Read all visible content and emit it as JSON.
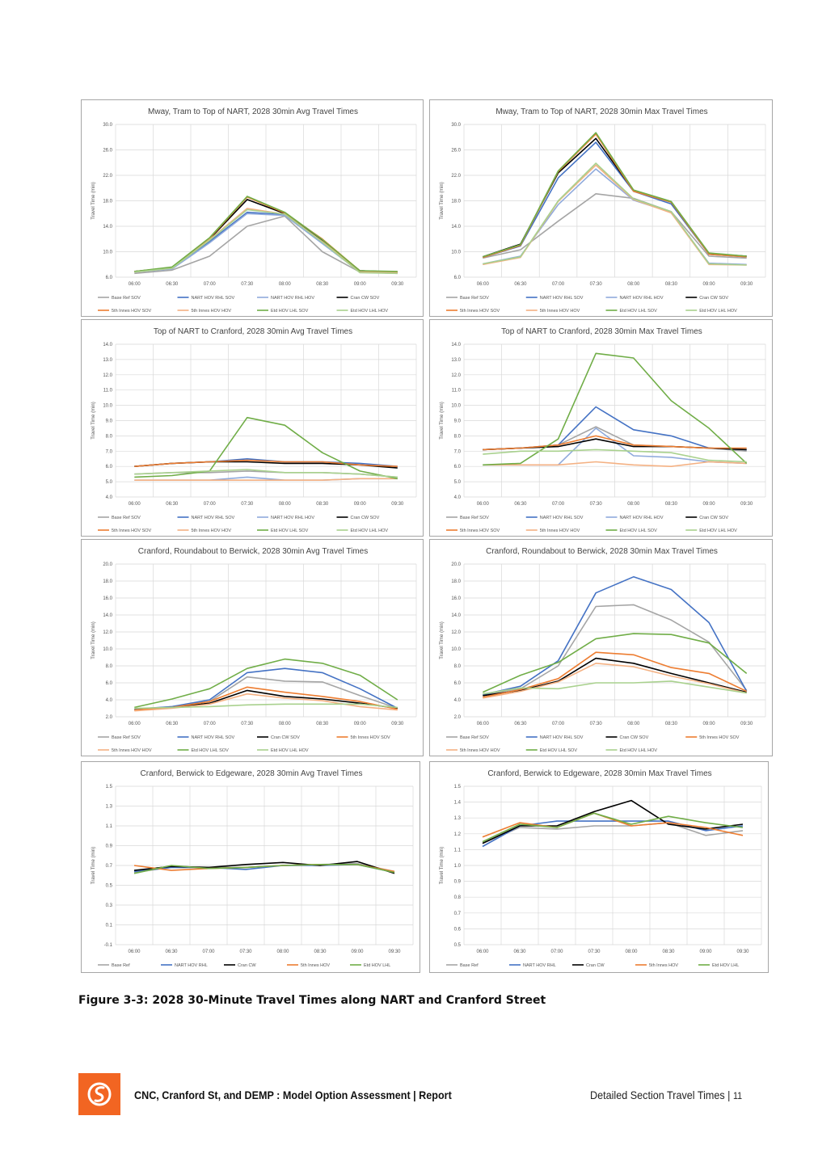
{
  "caption": "Figure 3-3:  2028 30-Minute Travel Times along NART and Cranford Street",
  "footer": {
    "title": "CNC, Cranford St, and DEMP : Model Option Assessment | Report",
    "right": "Detailed Section Travel Times",
    "page": "11",
    "logo_icon": "logo-icon",
    "logo_color": "#f26522"
  },
  "series_colors": {
    "Base Ref SOV": "#a5a5a5",
    "NART HOV RHL SOV": "#4472c4",
    "NART HOV RHL HOV": "#8faadc",
    "Cran CW SOV": "#000000",
    "5th Innes HOV SOV": "#ed7d31",
    "5th Innes HOV HOV": "#f4b183",
    "Etd HOV LHL SOV": "#70ad47",
    "Etd HOV LHL HOV": "#a9d18e",
    "Base Ref": "#a5a5a5",
    "NART HOV RHL": "#4472c4",
    "Cran CW": "#000000",
    "5th Innes HOV": "#ed7d31",
    "Etd HOV LHL": "#70ad47"
  },
  "chart_data": [
    {
      "type": "line",
      "title": "Mway, Tram to Top of NART, 2028 30min Avg Travel Times",
      "ylabel": "Travel Time (min)",
      "x": [
        "06:00",
        "06:30",
        "07:00",
        "07:30",
        "08:00",
        "08:30",
        "09:00",
        "09:30"
      ],
      "ylim": [
        6,
        30
      ],
      "yticks": [
        "6.0",
        "10.0",
        "14.0",
        "18.0",
        "22.0",
        "26.0",
        "30.0"
      ],
      "legend_cols": 4,
      "series": [
        {
          "name": "Base Ref SOV",
          "values": [
            6.6,
            7.1,
            9.3,
            14.0,
            15.6,
            10.0,
            6.8,
            6.6
          ]
        },
        {
          "name": "NART HOV RHL SOV",
          "values": [
            6.9,
            7.4,
            11.6,
            16.2,
            15.8,
            11.5,
            7.0,
            6.8
          ]
        },
        {
          "name": "NART HOV RHL HOV",
          "values": [
            6.8,
            7.3,
            11.4,
            16.0,
            15.7,
            11.3,
            6.8,
            6.7
          ]
        },
        {
          "name": "Cran CW SOV",
          "values": [
            6.9,
            7.5,
            12.0,
            18.2,
            16.0,
            11.8,
            7.0,
            6.8
          ]
        },
        {
          "name": "5th Innes HOV SOV",
          "values": [
            6.9,
            7.5,
            12.1,
            18.6,
            16.1,
            12.0,
            7.0,
            6.8
          ]
        },
        {
          "name": "5th Innes HOV HOV",
          "values": [
            6.8,
            7.4,
            11.9,
            16.8,
            15.9,
            11.6,
            6.9,
            6.7
          ]
        },
        {
          "name": "Etd HOV LHL SOV",
          "values": [
            6.9,
            7.6,
            12.2,
            18.7,
            16.2,
            11.9,
            7.0,
            6.9
          ]
        },
        {
          "name": "Etd HOV LHL HOV",
          "values": [
            6.8,
            7.4,
            11.8,
            16.6,
            15.9,
            11.5,
            6.7,
            6.6
          ]
        }
      ]
    },
    {
      "type": "line",
      "title": "Mway, Tram to Top of NART, 2028 30min Max Travel Times",
      "ylabel": "Travel Time (min)",
      "x": [
        "06:00",
        "06:30",
        "07:00",
        "07:30",
        "08:00",
        "08:30",
        "09:00",
        "09:30"
      ],
      "ylim": [
        6,
        30
      ],
      "yticks": [
        "6.0",
        "10.0",
        "14.0",
        "18.0",
        "22.0",
        "26.0",
        "30.0"
      ],
      "legend_cols": 4,
      "series": [
        {
          "name": "Base Ref SOV",
          "values": [
            9.0,
            10.3,
            14.8,
            19.1,
            18.4,
            16.3,
            9.3,
            9.0
          ]
        },
        {
          "name": "NART HOV RHL SOV",
          "values": [
            9.1,
            10.9,
            21.6,
            27.2,
            19.5,
            17.5,
            9.6,
            9.2
          ]
        },
        {
          "name": "NART HOV RHL HOV",
          "values": [
            8.1,
            9.3,
            17.4,
            23.0,
            18.1,
            16.2,
            8.2,
            8.0
          ]
        },
        {
          "name": "Cran CW SOV",
          "values": [
            9.2,
            11.2,
            22.4,
            27.8,
            19.6,
            17.8,
            9.7,
            9.3
          ]
        },
        {
          "name": "5th Innes HOV SOV",
          "values": [
            9.1,
            11.0,
            22.6,
            28.5,
            19.5,
            17.8,
            9.6,
            9.2
          ]
        },
        {
          "name": "5th Innes HOV HOV",
          "values": [
            8.0,
            9.1,
            17.9,
            23.6,
            18.2,
            16.1,
            8.0,
            7.9
          ]
        },
        {
          "name": "Etd HOV LHL SOV",
          "values": [
            9.2,
            11.1,
            22.7,
            28.7,
            19.7,
            17.9,
            9.8,
            9.3
          ]
        },
        {
          "name": "Etd HOV LHL HOV",
          "values": [
            8.1,
            9.2,
            18.0,
            23.9,
            18.3,
            16.3,
            8.1,
            7.9
          ]
        }
      ]
    },
    {
      "type": "line",
      "title": "Top of NART to Cranford, 2028 30min Avg Travel Times",
      "ylabel": "Travel Time (min)",
      "x": [
        "06:00",
        "06:30",
        "07:00",
        "07:30",
        "08:00",
        "08:30",
        "09:00",
        "09:30"
      ],
      "ylim": [
        4,
        14
      ],
      "yticks": [
        "4.0",
        "5.0",
        "6.0",
        "7.0",
        "8.0",
        "9.0",
        "10.0",
        "11.0",
        "12.0",
        "13.0",
        "14.0"
      ],
      "legend_cols": 4,
      "series": [
        {
          "name": "Base Ref SOV",
          "values": [
            5.5,
            5.6,
            5.6,
            5.7,
            5.6,
            5.6,
            5.5,
            5.3
          ]
        },
        {
          "name": "NART HOV RHL SOV",
          "values": [
            6.0,
            6.2,
            6.3,
            6.5,
            6.3,
            6.3,
            6.2,
            6.0
          ]
        },
        {
          "name": "NART HOV RHL HOV",
          "values": [
            5.1,
            5.1,
            5.1,
            5.3,
            5.1,
            5.1,
            5.2,
            5.2
          ]
        },
        {
          "name": "Cran CW SOV",
          "values": [
            6.0,
            6.2,
            6.3,
            6.3,
            6.2,
            6.2,
            6.1,
            5.9
          ]
        },
        {
          "name": "5th Innes HOV SOV",
          "values": [
            6.0,
            6.2,
            6.3,
            6.4,
            6.3,
            6.3,
            6.1,
            6.0
          ]
        },
        {
          "name": "5th Innes HOV HOV",
          "values": [
            5.1,
            5.1,
            5.1,
            5.1,
            5.1,
            5.1,
            5.2,
            5.2
          ]
        },
        {
          "name": "Etd HOV LHL SOV",
          "values": [
            5.3,
            5.4,
            5.7,
            9.2,
            8.7,
            6.9,
            5.7,
            5.2
          ]
        },
        {
          "name": "Etd HOV LHL HOV",
          "values": [
            5.5,
            5.6,
            5.7,
            5.8,
            5.6,
            5.6,
            5.5,
            5.3
          ]
        }
      ]
    },
    {
      "type": "line",
      "title": "Top of NART to Cranford, 2028 30min Max Travel Times",
      "ylabel": "Travel Time (min)",
      "x": [
        "06:00",
        "06:30",
        "07:00",
        "07:30",
        "08:00",
        "08:30",
        "09:00",
        "09:30"
      ],
      "ylim": [
        4,
        14
      ],
      "yticks": [
        "4.0",
        "5.0",
        "6.0",
        "7.0",
        "8.0",
        "9.0",
        "10.0",
        "11.0",
        "12.0",
        "13.0",
        "14.0"
      ],
      "legend_cols": 4,
      "series": [
        {
          "name": "Base Ref SOV",
          "values": [
            7.1,
            7.2,
            7.4,
            8.6,
            7.4,
            7.3,
            7.2,
            7.0
          ]
        },
        {
          "name": "NART HOV RHL SOV",
          "values": [
            7.1,
            7.2,
            7.4,
            9.9,
            8.4,
            8.0,
            7.2,
            7.1
          ]
        },
        {
          "name": "NART HOV RHL HOV",
          "values": [
            6.1,
            6.1,
            6.1,
            8.5,
            6.7,
            6.6,
            6.3,
            6.2
          ]
        },
        {
          "name": "Cran CW SOV",
          "values": [
            7.1,
            7.2,
            7.3,
            7.8,
            7.3,
            7.3,
            7.2,
            7.1
          ]
        },
        {
          "name": "5th Innes HOV SOV",
          "values": [
            7.1,
            7.2,
            7.4,
            8.0,
            7.4,
            7.3,
            7.2,
            7.2
          ]
        },
        {
          "name": "5th Innes HOV HOV",
          "values": [
            6.1,
            6.1,
            6.1,
            6.3,
            6.1,
            6.0,
            6.3,
            6.2
          ]
        },
        {
          "name": "Etd HOV LHL SOV",
          "values": [
            6.1,
            6.2,
            7.8,
            13.4,
            13.1,
            10.3,
            8.5,
            6.2
          ]
        },
        {
          "name": "Etd HOV LHL HOV",
          "values": [
            6.8,
            7.0,
            7.0,
            7.1,
            7.0,
            6.9,
            6.4,
            6.3
          ]
        }
      ]
    },
    {
      "type": "line",
      "title": "Cranford, Roundabout to Berwick, 2028 30min Avg Travel Times",
      "ylabel": "Travel Time (min)",
      "x": [
        "06:00",
        "06:30",
        "07:00",
        "07:30",
        "08:00",
        "08:30",
        "09:00",
        "09:30"
      ],
      "ylim": [
        2,
        20
      ],
      "yticks": [
        "2.0",
        "4.0",
        "6.0",
        "8.0",
        "10.0",
        "12.0",
        "14.0",
        "16.0",
        "18.0",
        "20.0"
      ],
      "legend_cols": 4,
      "series": [
        {
          "name": "Base Ref SOV",
          "values": [
            2.8,
            3.2,
            3.8,
            6.7,
            6.2,
            6.1,
            4.5,
            3.0
          ]
        },
        {
          "name": "NART HOV RHL SOV",
          "values": [
            2.9,
            3.2,
            4.0,
            7.2,
            7.7,
            7.2,
            5.3,
            3.0
          ]
        },
        {
          "name": "Cran CW SOV",
          "values": [
            2.8,
            3.1,
            3.6,
            5.1,
            4.4,
            4.1,
            3.6,
            3.0
          ]
        },
        {
          "name": "5th Innes HOV SOV",
          "values": [
            2.8,
            3.1,
            3.8,
            5.5,
            4.9,
            4.4,
            3.8,
            2.9
          ]
        },
        {
          "name": "5th Innes HOV HOV",
          "values": [
            2.7,
            3.0,
            3.5,
            4.7,
            4.2,
            3.9,
            3.2,
            2.8
          ]
        },
        {
          "name": "Etd HOV LHL SOV",
          "values": [
            3.1,
            4.1,
            5.3,
            7.7,
            8.8,
            8.3,
            6.9,
            4.0
          ]
        },
        {
          "name": "Etd HOV LHL HOV",
          "values": [
            3.0,
            3.1,
            3.2,
            3.4,
            3.5,
            3.5,
            3.5,
            3.1
          ]
        }
      ]
    },
    {
      "type": "line",
      "title": "Cranford, Roundabout to Berwick, 2028 30min Max Travel Times",
      "ylabel": "Travel Time (min)",
      "x": [
        "06:00",
        "06:30",
        "07:00",
        "07:30",
        "08:00",
        "08:30",
        "09:00",
        "09:30"
      ],
      "ylim": [
        2,
        20
      ],
      "yticks": [
        "2.0",
        "4.0",
        "6.0",
        "8.0",
        "10.0",
        "12.0",
        "14.0",
        "16.0",
        "18.0",
        "20.0"
      ],
      "legend_cols": 4,
      "series": [
        {
          "name": "Base Ref SOV",
          "values": [
            4.6,
            5.3,
            8.0,
            15.0,
            15.2,
            13.4,
            10.8,
            5.1
          ]
        },
        {
          "name": "NART HOV RHL SOV",
          "values": [
            4.6,
            5.6,
            8.6,
            16.6,
            18.5,
            17.0,
            13.1,
            5.0
          ]
        },
        {
          "name": "Cran CW SOV",
          "values": [
            4.5,
            5.1,
            6.2,
            8.9,
            8.3,
            7.1,
            6.0,
            4.9
          ]
        },
        {
          "name": "5th Innes HOV SOV",
          "values": [
            4.3,
            5.2,
            6.5,
            9.6,
            9.3,
            7.8,
            7.1,
            5.0
          ]
        },
        {
          "name": "5th Innes HOV HOV",
          "values": [
            4.2,
            5.0,
            6.1,
            8.3,
            7.9,
            6.8,
            5.9,
            4.8
          ]
        },
        {
          "name": "Etd HOV LHL SOV",
          "values": [
            4.9,
            6.9,
            8.4,
            11.2,
            11.8,
            11.7,
            10.7,
            7.1
          ]
        },
        {
          "name": "Etd HOV LHL HOV",
          "values": [
            4.7,
            5.4,
            5.3,
            6.0,
            6.0,
            6.2,
            5.5,
            4.8
          ]
        }
      ]
    },
    {
      "type": "line",
      "title": "Cranford, Berwick to Edgeware, 2028 30min Avg Travel Times",
      "ylabel": "Travel Time (min)",
      "x": [
        "06:00",
        "06:30",
        "07:00",
        "07:30",
        "08:00",
        "08:30",
        "09:00",
        "09:30"
      ],
      "ylim": [
        -0.1,
        1.5
      ],
      "yticks": [
        "-0.1",
        "0.1",
        "0.3",
        "0.5",
        "0.7",
        "0.9",
        "1.1",
        "1.3",
        "1.5"
      ],
      "legend_cols": 5,
      "series": [
        {
          "name": "Base Ref",
          "values": [
            0.63,
            0.68,
            0.68,
            0.68,
            0.7,
            0.71,
            0.72,
            0.64
          ]
        },
        {
          "name": "NART HOV RHL",
          "values": [
            0.64,
            0.68,
            0.68,
            0.66,
            0.7,
            0.7,
            0.71,
            0.63
          ]
        },
        {
          "name": "Cran CW",
          "values": [
            0.65,
            0.69,
            0.68,
            0.71,
            0.73,
            0.7,
            0.74,
            0.62
          ]
        },
        {
          "name": "5th Innes HOV",
          "values": [
            0.7,
            0.65,
            0.67,
            0.68,
            0.7,
            0.71,
            0.71,
            0.64
          ]
        },
        {
          "name": "Etd HOV LHL",
          "values": [
            0.62,
            0.7,
            0.67,
            0.68,
            0.7,
            0.71,
            0.71,
            0.63
          ]
        }
      ]
    },
    {
      "type": "line",
      "title": "Cranford, Berwick to Edgeware, 2028 30min Max Travel Times",
      "ylabel": "Travel Time (min)",
      "x": [
        "06:00",
        "06:30",
        "07:00",
        "07:30",
        "08:00",
        "08:30",
        "09:00",
        "09:30"
      ],
      "ylim": [
        0.5,
        1.5
      ],
      "yticks": [
        "0.5",
        "0.6",
        "0.7",
        "0.8",
        "0.9",
        "1.0",
        "1.1",
        "1.2",
        "1.3",
        "1.4",
        "1.5"
      ],
      "legend_cols": 5,
      "series": [
        {
          "name": "Base Ref",
          "values": [
            1.14,
            1.24,
            1.23,
            1.25,
            1.25,
            1.27,
            1.19,
            1.22
          ]
        },
        {
          "name": "NART HOV RHL",
          "values": [
            1.12,
            1.25,
            1.28,
            1.28,
            1.28,
            1.28,
            1.22,
            1.25
          ]
        },
        {
          "name": "Cran CW",
          "values": [
            1.14,
            1.25,
            1.25,
            1.34,
            1.41,
            1.26,
            1.23,
            1.26
          ]
        },
        {
          "name": "5th Innes HOV",
          "values": [
            1.18,
            1.27,
            1.24,
            1.33,
            1.25,
            1.27,
            1.24,
            1.19
          ]
        },
        {
          "name": "Etd HOV LHL",
          "values": [
            1.15,
            1.26,
            1.24,
            1.33,
            1.26,
            1.31,
            1.27,
            1.24
          ]
        }
      ]
    }
  ]
}
